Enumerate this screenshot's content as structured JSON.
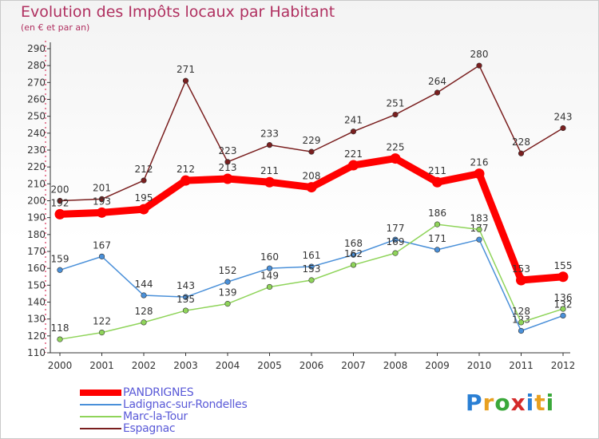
{
  "title": "Evolution des Impôts locaux par Habitant",
  "subtitle": "(en € et par an)",
  "logo": [
    "P",
    "r",
    "o",
    "x",
    "i",
    "t",
    "i"
  ],
  "logo_colors": [
    "#2a7fd4",
    "#e8a020",
    "#3aa83a",
    "#d42a2a",
    "#2a7fd4",
    "#e8a020",
    "#3aa83a"
  ],
  "chart_data": {
    "type": "line",
    "categories": [
      "2000",
      "2001",
      "2002",
      "2003",
      "2004",
      "2005",
      "2006",
      "2007",
      "2008",
      "2009",
      "2010",
      "2011",
      "2012"
    ],
    "ylim": [
      110,
      290
    ],
    "yticks": [
      110,
      120,
      130,
      140,
      150,
      160,
      170,
      180,
      190,
      200,
      210,
      220,
      230,
      240,
      250,
      260,
      270,
      280,
      290
    ],
    "grid": false,
    "legend_position": "bottom-left",
    "series": [
      {
        "name": "PANDRIGNES",
        "color": "#ff0000",
        "values": [
          192,
          193,
          195,
          212,
          213,
          211,
          208,
          221,
          225,
          211,
          216,
          153,
          155
        ]
      },
      {
        "name": "Ladignac-sur-Rondelles",
        "color": "#4a90d9",
        "values": [
          159,
          167,
          144,
          143,
          152,
          160,
          161,
          168,
          177,
          171,
          177,
          123,
          132
        ]
      },
      {
        "name": "Marc-la-Tour",
        "color": "#8fd45a",
        "values": [
          118,
          122,
          128,
          135,
          139,
          149,
          153,
          162,
          169,
          186,
          183,
          128,
          136
        ]
      },
      {
        "name": "Espagnac",
        "color": "#7a1f1f",
        "values": [
          200,
          201,
          212,
          271,
          223,
          233,
          229,
          241,
          251,
          264,
          280,
          228,
          243
        ]
      }
    ]
  }
}
